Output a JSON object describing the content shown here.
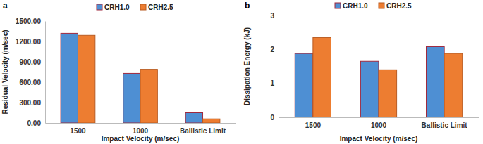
{
  "chart_data": [
    {
      "type": "bar",
      "title": "a",
      "x_label": "Impact Velocity (m/sec)",
      "y_label": "Residual Velocity (m/sec)",
      "categories": [
        "1500",
        "1000",
        "Ballistic Limit"
      ],
      "series": [
        {
          "name": "CRH1.0",
          "color": "#4e8fd3",
          "values": [
            1320,
            730,
            150
          ]
        },
        {
          "name": "CRH2.5",
          "color": "#ed7d31",
          "values": [
            1290,
            790,
            60
          ]
        }
      ],
      "ylim": [
        0,
        1500
      ],
      "yticks": [
        {
          "value": 0,
          "label": "0.00"
        },
        {
          "value": 300,
          "label": "300.00"
        },
        {
          "value": 600,
          "label": "600.00"
        },
        {
          "value": 900,
          "label": "900.00"
        },
        {
          "value": 1200,
          "label": "1200.00"
        },
        {
          "value": 1500,
          "label": "1500.00"
        }
      ],
      "grid": false,
      "legend": "top"
    },
    {
      "type": "bar",
      "title": "b",
      "x_label": "Impact Velocity (m/sec)",
      "y_label": "Dissipation Energy (kJ)",
      "categories": [
        "1500",
        "1000",
        "Ballistic Limit"
      ],
      "series": [
        {
          "name": "CRH1.0",
          "color": "#4e8fd3",
          "values": [
            1.88,
            1.65,
            2.08
          ]
        },
        {
          "name": "CRH2.5",
          "color": "#ed7d31",
          "values": [
            2.35,
            1.4,
            1.88
          ]
        }
      ],
      "ylim": [
        0,
        3
      ],
      "yticks": [
        0,
        1,
        2,
        3
      ],
      "grid": false,
      "legend": "top"
    }
  ]
}
